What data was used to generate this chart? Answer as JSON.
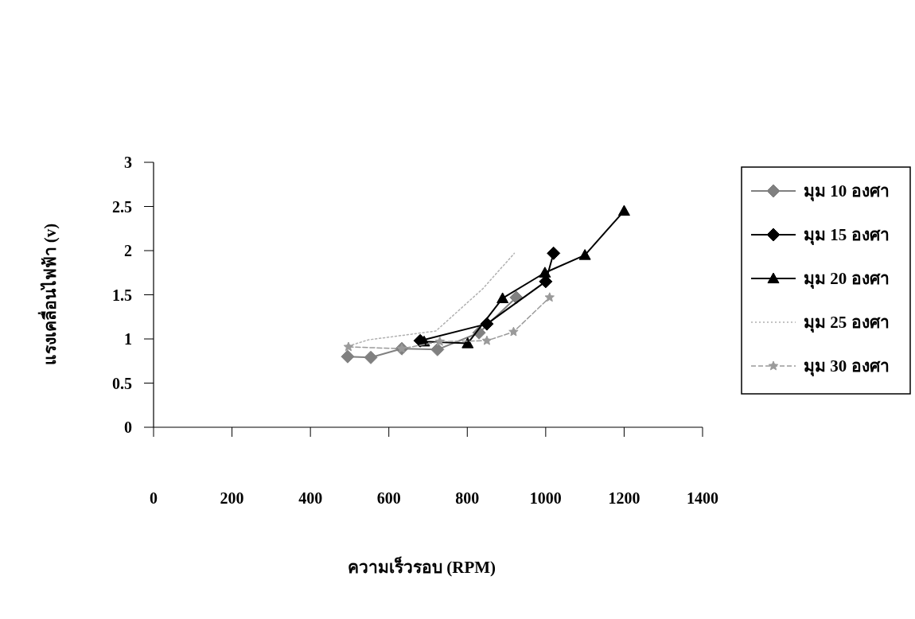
{
  "chart_data": {
    "type": "line",
    "xlabel": "ความเร็วรอบ (RPM)",
    "ylabel": "แรงเคลื่อนไฟฟ้า (v)",
    "xlim": [
      0,
      1400
    ],
    "xticks": [
      0,
      200,
      400,
      600,
      800,
      1000,
      1200,
      1400
    ],
    "ylim": [
      0,
      3
    ],
    "yticks": [
      0,
      0.5,
      1,
      1.5,
      2,
      2.5,
      3
    ],
    "grid": false,
    "legend": "right",
    "series": [
      {
        "name": "มุม 10 องศา",
        "color": "#808080",
        "marker": "diamond",
        "line_style": "solid",
        "x": [
          495,
          554,
          633,
          724,
          830,
          925
        ],
        "values": [
          0.8,
          0.79,
          0.89,
          0.88,
          1.07,
          1.47
        ]
      },
      {
        "name": "มุม 15 องศา",
        "color": "#000000",
        "marker": "diamond",
        "line_style": "solid",
        "x": [
          680,
          850,
          1000,
          1020
        ],
        "values": [
          0.98,
          1.17,
          1.65,
          1.97
        ]
      },
      {
        "name": "มุม 20 องศา",
        "color": "#000000",
        "marker": "triangle",
        "line_style": "solid",
        "x": [
          690,
          801,
          890,
          998,
          1100,
          1200
        ],
        "values": [
          0.97,
          0.95,
          1.46,
          1.75,
          1.95,
          2.45
        ]
      },
      {
        "name": "มุม 25 องศา",
        "color": "#b0b0b0",
        "marker": "none",
        "line_style": "dotted",
        "x": [
          497,
          548,
          720,
          840,
          920
        ],
        "values": [
          0.92,
          0.99,
          1.09,
          1.57,
          1.97
        ]
      },
      {
        "name": "มุม 30 องศา",
        "color": "#9a9a9a",
        "marker": "star",
        "line_style": "dashed",
        "x": [
          497,
          633,
          730,
          850,
          918,
          1010
        ],
        "values": [
          0.91,
          0.89,
          0.97,
          0.98,
          1.08,
          1.47
        ]
      }
    ]
  }
}
